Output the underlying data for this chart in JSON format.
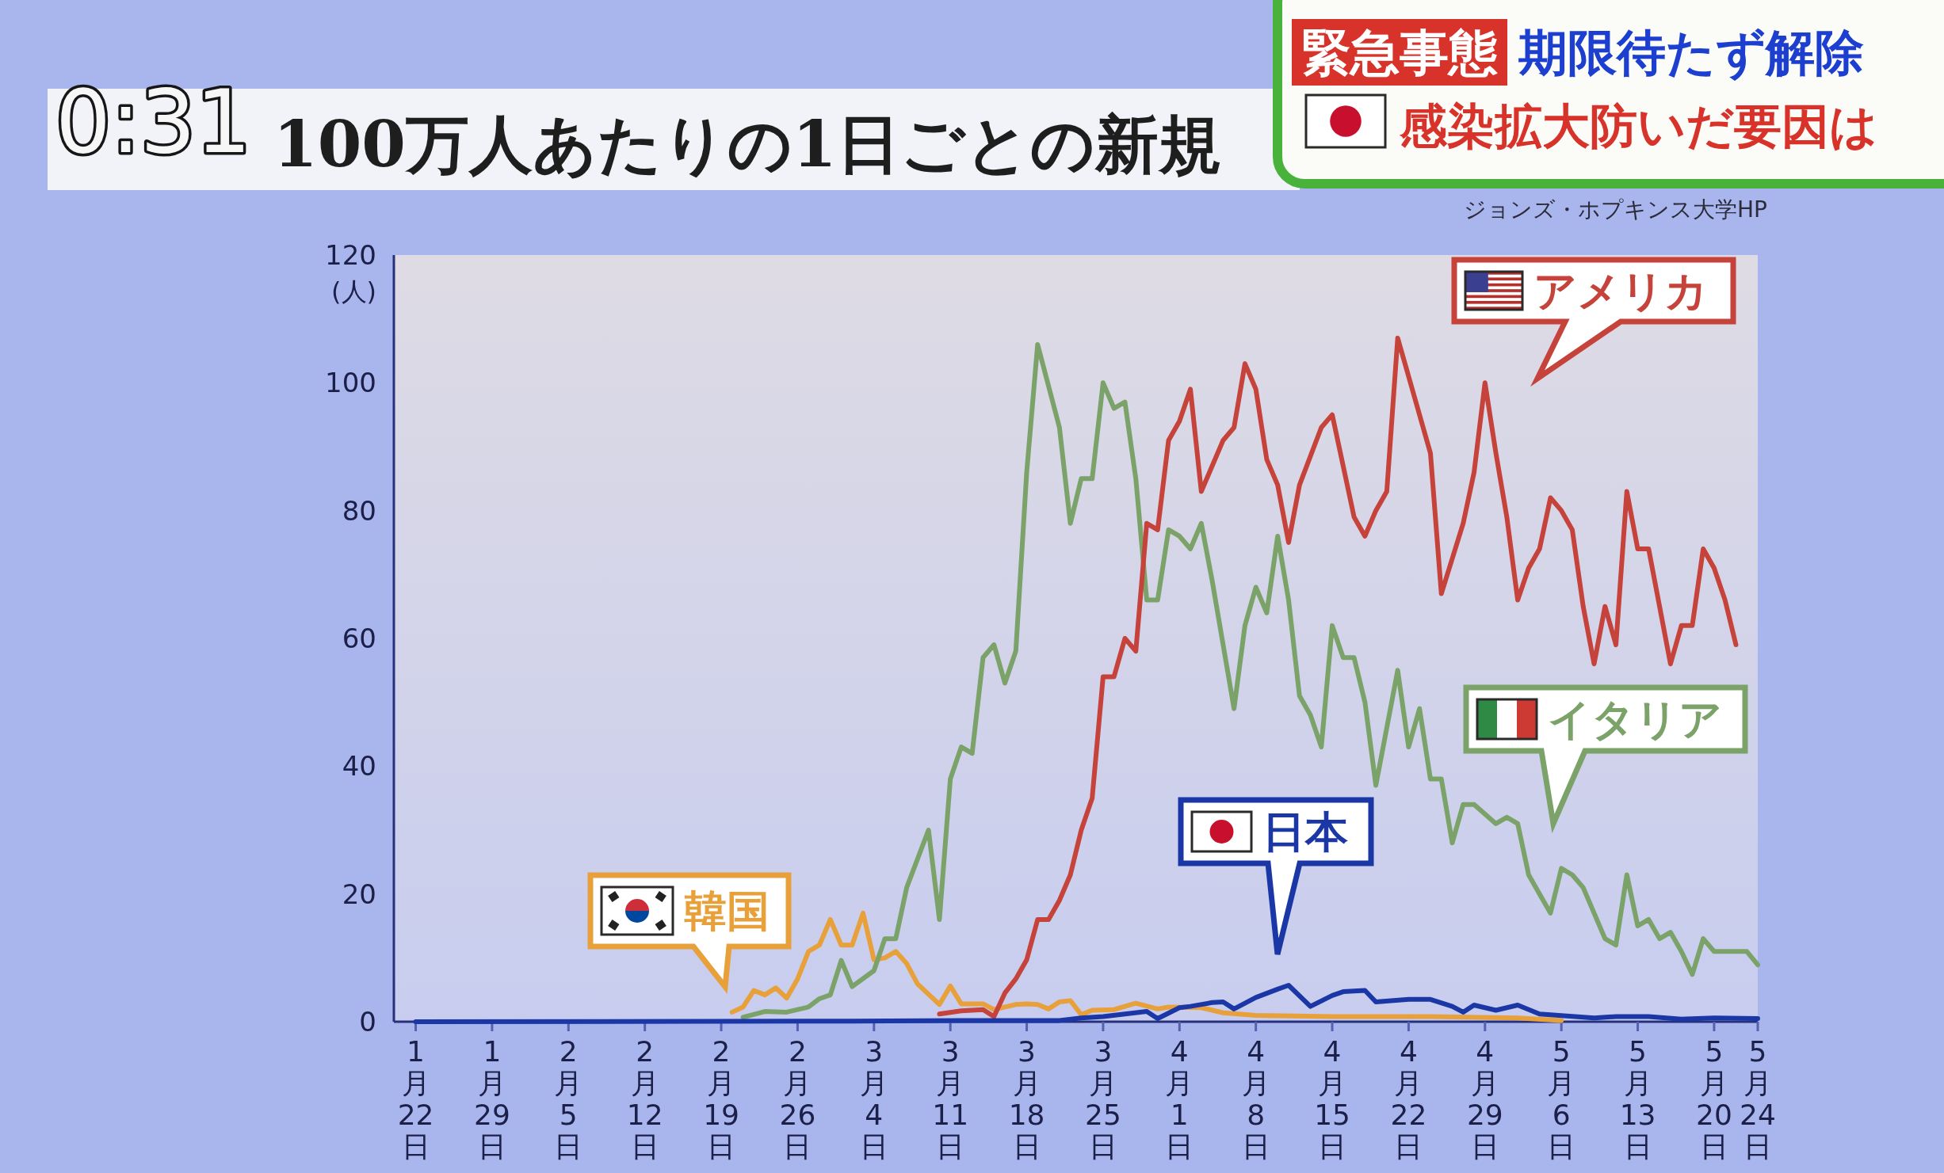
{
  "chart_data": {
    "type": "line",
    "title": "100万人あたりの1日ごとの新規",
    "ylabel": "(人)",
    "annotations": [
      "0:31",
      "緊急事態",
      "期限待たず解除",
      "感染拡大防いだ要因は",
      "ジョンズ・ホプキンス大学HP"
    ],
    "xlim": [
      "--01-20",
      "--05-24"
    ],
    "xticks": [
      {
        "value": "--01-22",
        "label": "1月22日"
      },
      {
        "value": "--01-29",
        "label": "1月29日"
      },
      {
        "value": "--02-05",
        "label": "2月5日"
      },
      {
        "value": "--02-12",
        "label": "2月12日"
      },
      {
        "value": "--02-19",
        "label": "2月19日"
      },
      {
        "value": "--02-26",
        "label": "2月26日"
      },
      {
        "value": "--03-04",
        "label": "3月4日"
      },
      {
        "value": "--03-11",
        "label": "3月11日"
      },
      {
        "value": "--03-18",
        "label": "3月18日"
      },
      {
        "value": "--03-25",
        "label": "3月25日"
      },
      {
        "value": "--04-01",
        "label": "4月1日"
      },
      {
        "value": "--04-08",
        "label": "4月8日"
      },
      {
        "value": "--04-15",
        "label": "4月15日"
      },
      {
        "value": "--04-22",
        "label": "4月22日"
      },
      {
        "value": "--04-29",
        "label": "4月29日"
      },
      {
        "value": "--05-06",
        "label": "5月6日"
      },
      {
        "value": "--05-13",
        "label": "5月13日"
      },
      {
        "value": "--05-20",
        "label": "5月20日"
      },
      {
        "value": "--05-24",
        "label": "5月24日"
      }
    ],
    "ylim": [
      0,
      120
    ],
    "yticks": [
      0,
      20,
      40,
      60,
      80,
      100,
      120
    ],
    "series": [
      {
        "name": "韓国",
        "color": "#e8a03a",
        "x": [
          "--02-20",
          "--02-21",
          "--02-22",
          "--02-23",
          "--02-24",
          "--02-25",
          "--02-26",
          "--02-27",
          "--02-28",
          "--02-29",
          "--03-01",
          "--03-02",
          "--03-03",
          "--03-04",
          "--03-05",
          "--03-06",
          "--03-07",
          "--03-08",
          "--03-10",
          "--03-11",
          "--03-12",
          "--03-14",
          "--03-15",
          "--03-17",
          "--03-18",
          "--03-19",
          "--03-20",
          "--03-21",
          "--03-22",
          "--03-23",
          "--03-24",
          "--03-26",
          "--03-28",
          "--03-30",
          "--03-31",
          "--04-03",
          "--04-05",
          "--04-08",
          "--04-15",
          "--04-24",
          "--05-02",
          "--05-06"
        ],
        "values": [
          1.5,
          2.3,
          4.9,
          4.2,
          5.3,
          3.7,
          6.7,
          11,
          12,
          16,
          12,
          12,
          17,
          9.7,
          10,
          11,
          9.1,
          5.9,
          2.7,
          5.6,
          2.8,
          2.8,
          1.9,
          2.7,
          2.8,
          2.7,
          2.0,
          3.1,
          3.3,
          1.1,
          1.8,
          1.9,
          2.9,
          2.0,
          2.3,
          2.2,
          1.4,
          1.0,
          0.8,
          0.8,
          0.6,
          0.2
        ]
      },
      {
        "name": "イタリア",
        "color": "#7ba268",
        "x": [
          "--02-21",
          "--02-23",
          "--02-25",
          "--02-27",
          "--02-28",
          "--02-29",
          "--03-01",
          "--03-02",
          "--03-04",
          "--03-05",
          "--03-06",
          "--03-07",
          "--03-09",
          "--03-10",
          "--03-11",
          "--03-12",
          "--03-13",
          "--03-14",
          "--03-15",
          "--03-16",
          "--03-17",
          "--03-18",
          "--03-19",
          "--03-21",
          "--03-22",
          "--03-23",
          "--03-24",
          "--03-25",
          "--03-26",
          "--03-27",
          "--03-28",
          "--03-29",
          "--03-30",
          "--03-31",
          "--04-01",
          "--04-02",
          "--04-03",
          "--04-04",
          "--04-05",
          "--04-06",
          "--04-07",
          "--04-08",
          "--04-09",
          "--04-10",
          "--04-11",
          "--04-12",
          "--04-13",
          "--04-14",
          "--04-15",
          "--04-16",
          "--04-17",
          "--04-18",
          "--04-19",
          "--04-21",
          "--04-22",
          "--04-23",
          "--04-24",
          "--04-25",
          "--04-26",
          "--04-27",
          "--04-28",
          "--04-30",
          "--05-01",
          "--05-02",
          "--05-03",
          "--05-04",
          "--05-05",
          "--05-06",
          "--05-07",
          "--05-08",
          "--05-09",
          "--05-10",
          "--05-11",
          "--05-12",
          "--05-13",
          "--05-14",
          "--05-15",
          "--05-16",
          "--05-17",
          "--05-18",
          "--05-19",
          "--05-20",
          "--05-22",
          "--05-23",
          "--05-24"
        ],
        "values": [
          0.7,
          1.6,
          1.5,
          2.3,
          3.6,
          4.2,
          9.6,
          5.5,
          8.0,
          13,
          13,
          21,
          30,
          16,
          38,
          43,
          42,
          57,
          59,
          53,
          58,
          86,
          106,
          93,
          78,
          85,
          85,
          100,
          96,
          97,
          85,
          66,
          66,
          77,
          76,
          74,
          78,
          69,
          59,
          49,
          62,
          68,
          64,
          76,
          66,
          51,
          48,
          43,
          62,
          57,
          57,
          50,
          37,
          55,
          43,
          49,
          38,
          38,
          28,
          34,
          34,
          31,
          32,
          31,
          23,
          20,
          17,
          24,
          23,
          21,
          17,
          13,
          12,
          23,
          15,
          16,
          13,
          14,
          11,
          7.4,
          13,
          11,
          11,
          11,
          8.9
        ]
      },
      {
        "name": "アメリカ",
        "color": "#c5433b",
        "x": [
          "--03-10",
          "--03-12",
          "--03-14",
          "--03-15",
          "--03-16",
          "--03-17",
          "--03-18",
          "--03-19",
          "--03-20",
          "--03-21",
          "--03-22",
          "--03-23",
          "--03-24",
          "--03-25",
          "--03-26",
          "--03-27",
          "--03-28",
          "--03-29",
          "--03-30",
          "--03-31",
          "--04-01",
          "--04-02",
          "--04-03",
          "--04-04",
          "--04-05",
          "--04-06",
          "--04-07",
          "--04-08",
          "--04-09",
          "--04-10",
          "--04-11",
          "--04-12",
          "--04-14",
          "--04-15",
          "--04-16",
          "--04-17",
          "--04-18",
          "--04-19",
          "--04-20",
          "--04-21",
          "--04-22",
          "--04-24",
          "--04-25",
          "--04-27",
          "--04-28",
          "--04-29",
          "--04-30",
          "--05-01",
          "--05-02",
          "--05-03",
          "--05-04",
          "--05-05",
          "--05-06",
          "--05-07",
          "--05-08",
          "--05-09",
          "--05-10",
          "--05-11",
          "--05-12",
          "--05-13",
          "--05-14",
          "--05-15",
          "--05-16",
          "--05-17",
          "--05-18",
          "--05-19",
          "--05-20",
          "--05-21",
          "--05-22"
        ],
        "values": [
          1.2,
          1.7,
          1.9,
          0.8,
          4.5,
          6.7,
          9.7,
          16,
          16,
          19,
          23,
          30,
          35,
          54,
          54,
          60,
          58,
          78,
          77,
          91,
          94,
          99,
          83,
          87,
          91,
          93,
          103,
          99,
          88,
          84,
          75,
          84,
          93,
          95,
          87,
          79,
          76,
          80,
          83,
          107,
          101,
          89,
          67,
          78,
          86,
          100,
          89,
          79,
          66,
          71,
          74,
          82,
          80,
          77,
          65,
          56,
          65,
          59,
          83,
          74,
          74,
          65,
          56,
          62,
          62,
          74,
          71,
          66,
          59
        ]
      },
      {
        "name": "日本",
        "color": "#1b37a6",
        "x": [
          "--01-22",
          "--03-02",
          "--03-12",
          "--03-21",
          "--03-23",
          "--03-25",
          "--03-27",
          "--03-29",
          "--03-30",
          "--04-01",
          "--04-02",
          "--04-04",
          "--04-05",
          "--04-06",
          "--04-08",
          "--04-10",
          "--04-11",
          "--04-13",
          "--04-15",
          "--04-16",
          "--04-18",
          "--04-19",
          "--04-22",
          "--04-24",
          "--04-26",
          "--04-27",
          "--04-28",
          "--04-30",
          "--05-02",
          "--05-04",
          "--05-09",
          "--05-11",
          "--05-14",
          "--05-17",
          "--05-20",
          "--05-24"
        ],
        "values": [
          0,
          0.1,
          0.2,
          0.2,
          0.6,
          0.8,
          1.2,
          1.6,
          0.5,
          2.2,
          2.4,
          3.0,
          3.1,
          2.0,
          3.8,
          5.1,
          5.7,
          2.4,
          4.1,
          4.7,
          4.9,
          3.1,
          3.5,
          3.5,
          2.4,
          1.5,
          2.6,
          1.8,
          2.6,
          1.2,
          0.6,
          0.8,
          0.8,
          0.4,
          0.6,
          0.5
        ]
      }
    ]
  }
}
